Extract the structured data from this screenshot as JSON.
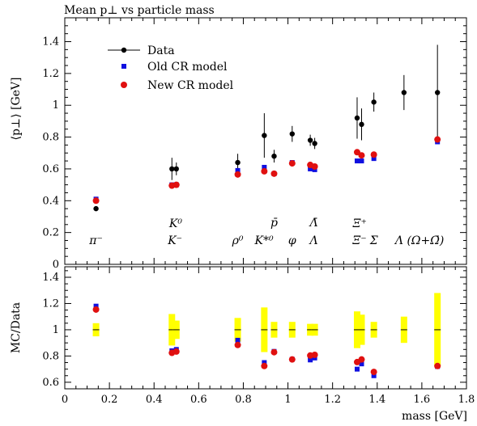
{
  "chart_data": [
    {
      "type": "scatter",
      "title": "Mean p⊥ vs particle mass",
      "ylabel": "⟨p⊥⟩ [GeV]",
      "xlim": [
        0,
        1.8
      ],
      "ylim": [
        0,
        1.55
      ],
      "yticks": [
        "0",
        "0.2",
        "0.4",
        "0.6",
        "0.8",
        "1",
        "1.2",
        "1.4"
      ],
      "legend": {
        "position": "top-left",
        "entries": [
          "Data",
          "Old CR model",
          "New CR model"
        ]
      },
      "colors": {
        "data": "#000000",
        "old": "#1010e0",
        "new": "#e01010"
      },
      "particle_labels": [
        {
          "text": "π⁻",
          "x": 0.14,
          "row": 1
        },
        {
          "text": "K⁰",
          "x": 0.497,
          "row": 3
        },
        {
          "text": "K⁻",
          "x": 0.494,
          "row": 1
        },
        {
          "text": "ρ⁰",
          "x": 0.775,
          "row": 1
        },
        {
          "text": "p̄",
          "x": 0.938,
          "row": 2
        },
        {
          "text": "K*⁰",
          "x": 0.893,
          "row": 1
        },
        {
          "text": "φ",
          "x": 1.019,
          "row": 1
        },
        {
          "text": "Λ̄",
          "x": 1.116,
          "row": 2
        },
        {
          "text": "Λ",
          "x": 1.116,
          "row": 1
        },
        {
          "text": "Ξ̄⁺",
          "x": 1.322,
          "row": 3
        },
        {
          "text": "Ξ⁻",
          "x": 1.321,
          "row": 1
        },
        {
          "text": "Σ",
          "x": 1.385,
          "row": 1
        },
        {
          "text": "Λ (Ω+Ω̄)",
          "x": 1.59,
          "row": 1
        }
      ],
      "series": [
        {
          "name": "Data",
          "points": [
            {
              "x": 0.14,
              "y": 0.35,
              "err": 0.01
            },
            {
              "x": 0.48,
              "y": 0.6,
              "err": 0.07
            },
            {
              "x": 0.5,
              "y": 0.6,
              "err": 0.04
            },
            {
              "x": 0.775,
              "y": 0.64,
              "err": 0.055
            },
            {
              "x": 0.894,
              "y": 0.81,
              "err": 0.14
            },
            {
              "x": 0.938,
              "y": 0.68,
              "err": 0.04
            },
            {
              "x": 1.019,
              "y": 0.82,
              "err": 0.05
            },
            {
              "x": 1.1,
              "y": 0.78,
              "err": 0.035
            },
            {
              "x": 1.12,
              "y": 0.76,
              "err": 0.035
            },
            {
              "x": 1.31,
              "y": 0.92,
              "err": 0.13
            },
            {
              "x": 1.33,
              "y": 0.88,
              "err": 0.1
            },
            {
              "x": 1.385,
              "y": 1.02,
              "err": 0.06
            },
            {
              "x": 1.52,
              "y": 1.08,
              "err": 0.11
            },
            {
              "x": 1.67,
              "y": 1.08,
              "err": 0.3
            }
          ]
        },
        {
          "name": "Old CR model",
          "points": [
            {
              "x": 0.14,
              "y": 0.41
            },
            {
              "x": 0.48,
              "y": 0.5
            },
            {
              "x": 0.5,
              "y": 0.5
            },
            {
              "x": 0.775,
              "y": 0.59
            },
            {
              "x": 0.894,
              "y": 0.61
            },
            {
              "x": 0.938,
              "y": 0.57
            },
            {
              "x": 1.019,
              "y": 0.64
            },
            {
              "x": 1.1,
              "y": 0.6
            },
            {
              "x": 1.12,
              "y": 0.595
            },
            {
              "x": 1.31,
              "y": 0.65
            },
            {
              "x": 1.33,
              "y": 0.65
            },
            {
              "x": 1.385,
              "y": 0.665
            },
            {
              "x": 1.67,
              "y": 0.77
            }
          ]
        },
        {
          "name": "New CR model",
          "points": [
            {
              "x": 0.14,
              "y": 0.405
            },
            {
              "x": 0.48,
              "y": 0.5
            },
            {
              "x": 0.5,
              "y": 0.505
            },
            {
              "x": 0.775,
              "y": 0.57
            },
            {
              "x": 0.894,
              "y": 0.59
            },
            {
              "x": 0.938,
              "y": 0.575
            },
            {
              "x": 1.019,
              "y": 0.64
            },
            {
              "x": 1.1,
              "y": 0.63
            },
            {
              "x": 1.12,
              "y": 0.62
            },
            {
              "x": 1.31,
              "y": 0.71
            },
            {
              "x": 1.33,
              "y": 0.69
            },
            {
              "x": 1.385,
              "y": 0.695
            },
            {
              "x": 1.67,
              "y": 0.79
            }
          ]
        }
      ]
    },
    {
      "type": "scatter",
      "ylabel": "MC/Data",
      "xlabel": "mass [GeV]",
      "xlim": [
        0,
        1.8
      ],
      "ylim": [
        0.55,
        1.48
      ],
      "xticks": [
        "0",
        "0.2",
        "0.4",
        "0.6",
        "0.8",
        "1",
        "1.2",
        "1.4",
        "1.6",
        "1.8"
      ],
      "yticks": [
        "0.6",
        "0.8",
        "1",
        "1.2",
        "1.4"
      ],
      "band_color": "#ffff00",
      "bands": [
        {
          "x": 0.14,
          "lo": 0.95,
          "hi": 1.05
        },
        {
          "x": 0.48,
          "lo": 0.88,
          "hi": 1.12
        },
        {
          "x": 0.5,
          "lo": 0.93,
          "hi": 1.07
        },
        {
          "x": 0.775,
          "lo": 0.91,
          "hi": 1.09
        },
        {
          "x": 0.894,
          "lo": 0.83,
          "hi": 1.17
        },
        {
          "x": 0.938,
          "lo": 0.94,
          "hi": 1.06
        },
        {
          "x": 1.019,
          "lo": 0.94,
          "hi": 1.06
        },
        {
          "x": 1.1,
          "lo": 0.955,
          "hi": 1.045
        },
        {
          "x": 1.12,
          "lo": 0.955,
          "hi": 1.045
        },
        {
          "x": 1.31,
          "lo": 0.86,
          "hi": 1.14
        },
        {
          "x": 1.33,
          "lo": 0.885,
          "hi": 1.115
        },
        {
          "x": 1.385,
          "lo": 0.94,
          "hi": 1.06
        },
        {
          "x": 1.52,
          "lo": 0.9,
          "hi": 1.1
        },
        {
          "x": 1.67,
          "lo": 0.72,
          "hi": 1.28
        }
      ],
      "series": [
        {
          "name": "Old CR model",
          "points": [
            {
              "x": 0.14,
              "y": 1.18
            },
            {
              "x": 0.48,
              "y": 0.84
            },
            {
              "x": 0.5,
              "y": 0.85
            },
            {
              "x": 0.775,
              "y": 0.92
            },
            {
              "x": 0.894,
              "y": 0.75
            },
            {
              "x": 0.938,
              "y": 0.835
            },
            {
              "x": 1.019,
              "y": 0.775
            },
            {
              "x": 1.1,
              "y": 0.77
            },
            {
              "x": 1.12,
              "y": 0.785
            },
            {
              "x": 1.31,
              "y": 0.7
            },
            {
              "x": 1.33,
              "y": 0.74
            },
            {
              "x": 1.385,
              "y": 0.65
            },
            {
              "x": 1.67,
              "y": 0.72
            }
          ]
        },
        {
          "name": "New CR model",
          "points": [
            {
              "x": 0.14,
              "y": 1.16
            },
            {
              "x": 0.48,
              "y": 0.83
            },
            {
              "x": 0.5,
              "y": 0.84
            },
            {
              "x": 0.775,
              "y": 0.89
            },
            {
              "x": 0.894,
              "y": 0.73
            },
            {
              "x": 0.938,
              "y": 0.835
            },
            {
              "x": 1.019,
              "y": 0.78
            },
            {
              "x": 1.1,
              "y": 0.81
            },
            {
              "x": 1.12,
              "y": 0.815
            },
            {
              "x": 1.31,
              "y": 0.76
            },
            {
              "x": 1.33,
              "y": 0.78
            },
            {
              "x": 1.385,
              "y": 0.685
            },
            {
              "x": 1.67,
              "y": 0.73
            }
          ]
        }
      ]
    }
  ]
}
